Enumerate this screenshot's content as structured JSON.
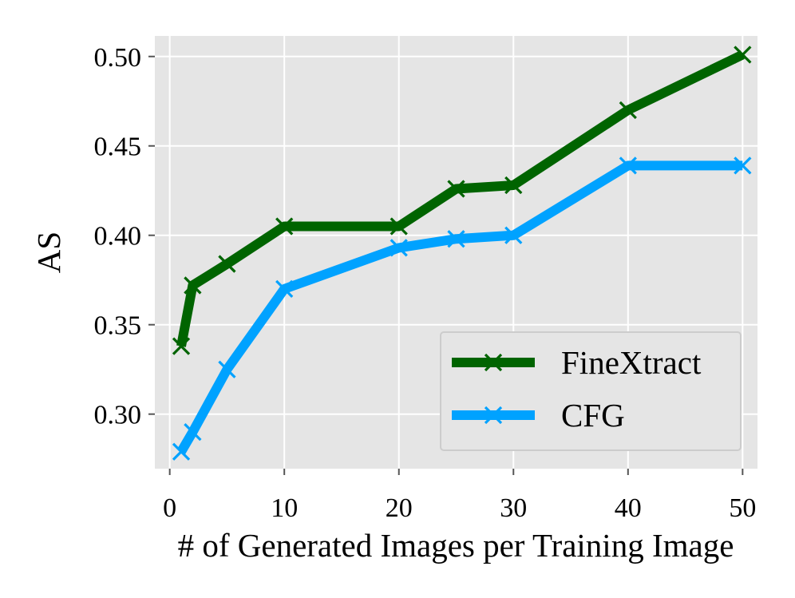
{
  "chart_data": {
    "type": "line",
    "title": "",
    "xlabel": "# of Generated Images per Training Image",
    "ylabel": "AS",
    "xlim": [
      -1.3,
      51.3
    ],
    "ylim": [
      0.2695,
      0.5115
    ],
    "xticks": [
      0,
      10,
      20,
      30,
      40,
      50
    ],
    "xtick_labels": [
      "0",
      "10",
      "20",
      "30",
      "40",
      "50"
    ],
    "yticks": [
      0.3,
      0.35,
      0.4,
      0.45,
      0.5
    ],
    "ytick_labels": [
      "0.30",
      "0.35",
      "0.40",
      "0.45",
      "0.50"
    ],
    "grid": true,
    "legend_position": "lower-right",
    "series": [
      {
        "name": "FineXtract",
        "color": "#006400",
        "marker": "x",
        "x": [
          1,
          2,
          5,
          10,
          20,
          25,
          30,
          40,
          50
        ],
        "y": [
          0.338,
          0.372,
          0.384,
          0.405,
          0.405,
          0.426,
          0.428,
          0.47,
          0.501
        ]
      },
      {
        "name": "CFG",
        "color": "#00a2ff",
        "marker": "x",
        "x": [
          1,
          2,
          5,
          10,
          20,
          25,
          30,
          40,
          50
        ],
        "y": [
          0.279,
          0.29,
          0.325,
          0.37,
          0.393,
          0.398,
          0.4,
          0.439,
          0.439
        ]
      }
    ],
    "colors": {
      "plot_background": "#e5e5e5",
      "grid": "#ffffff",
      "legend_background": "#e5e5e5",
      "legend_border": "#cccccc"
    }
  }
}
